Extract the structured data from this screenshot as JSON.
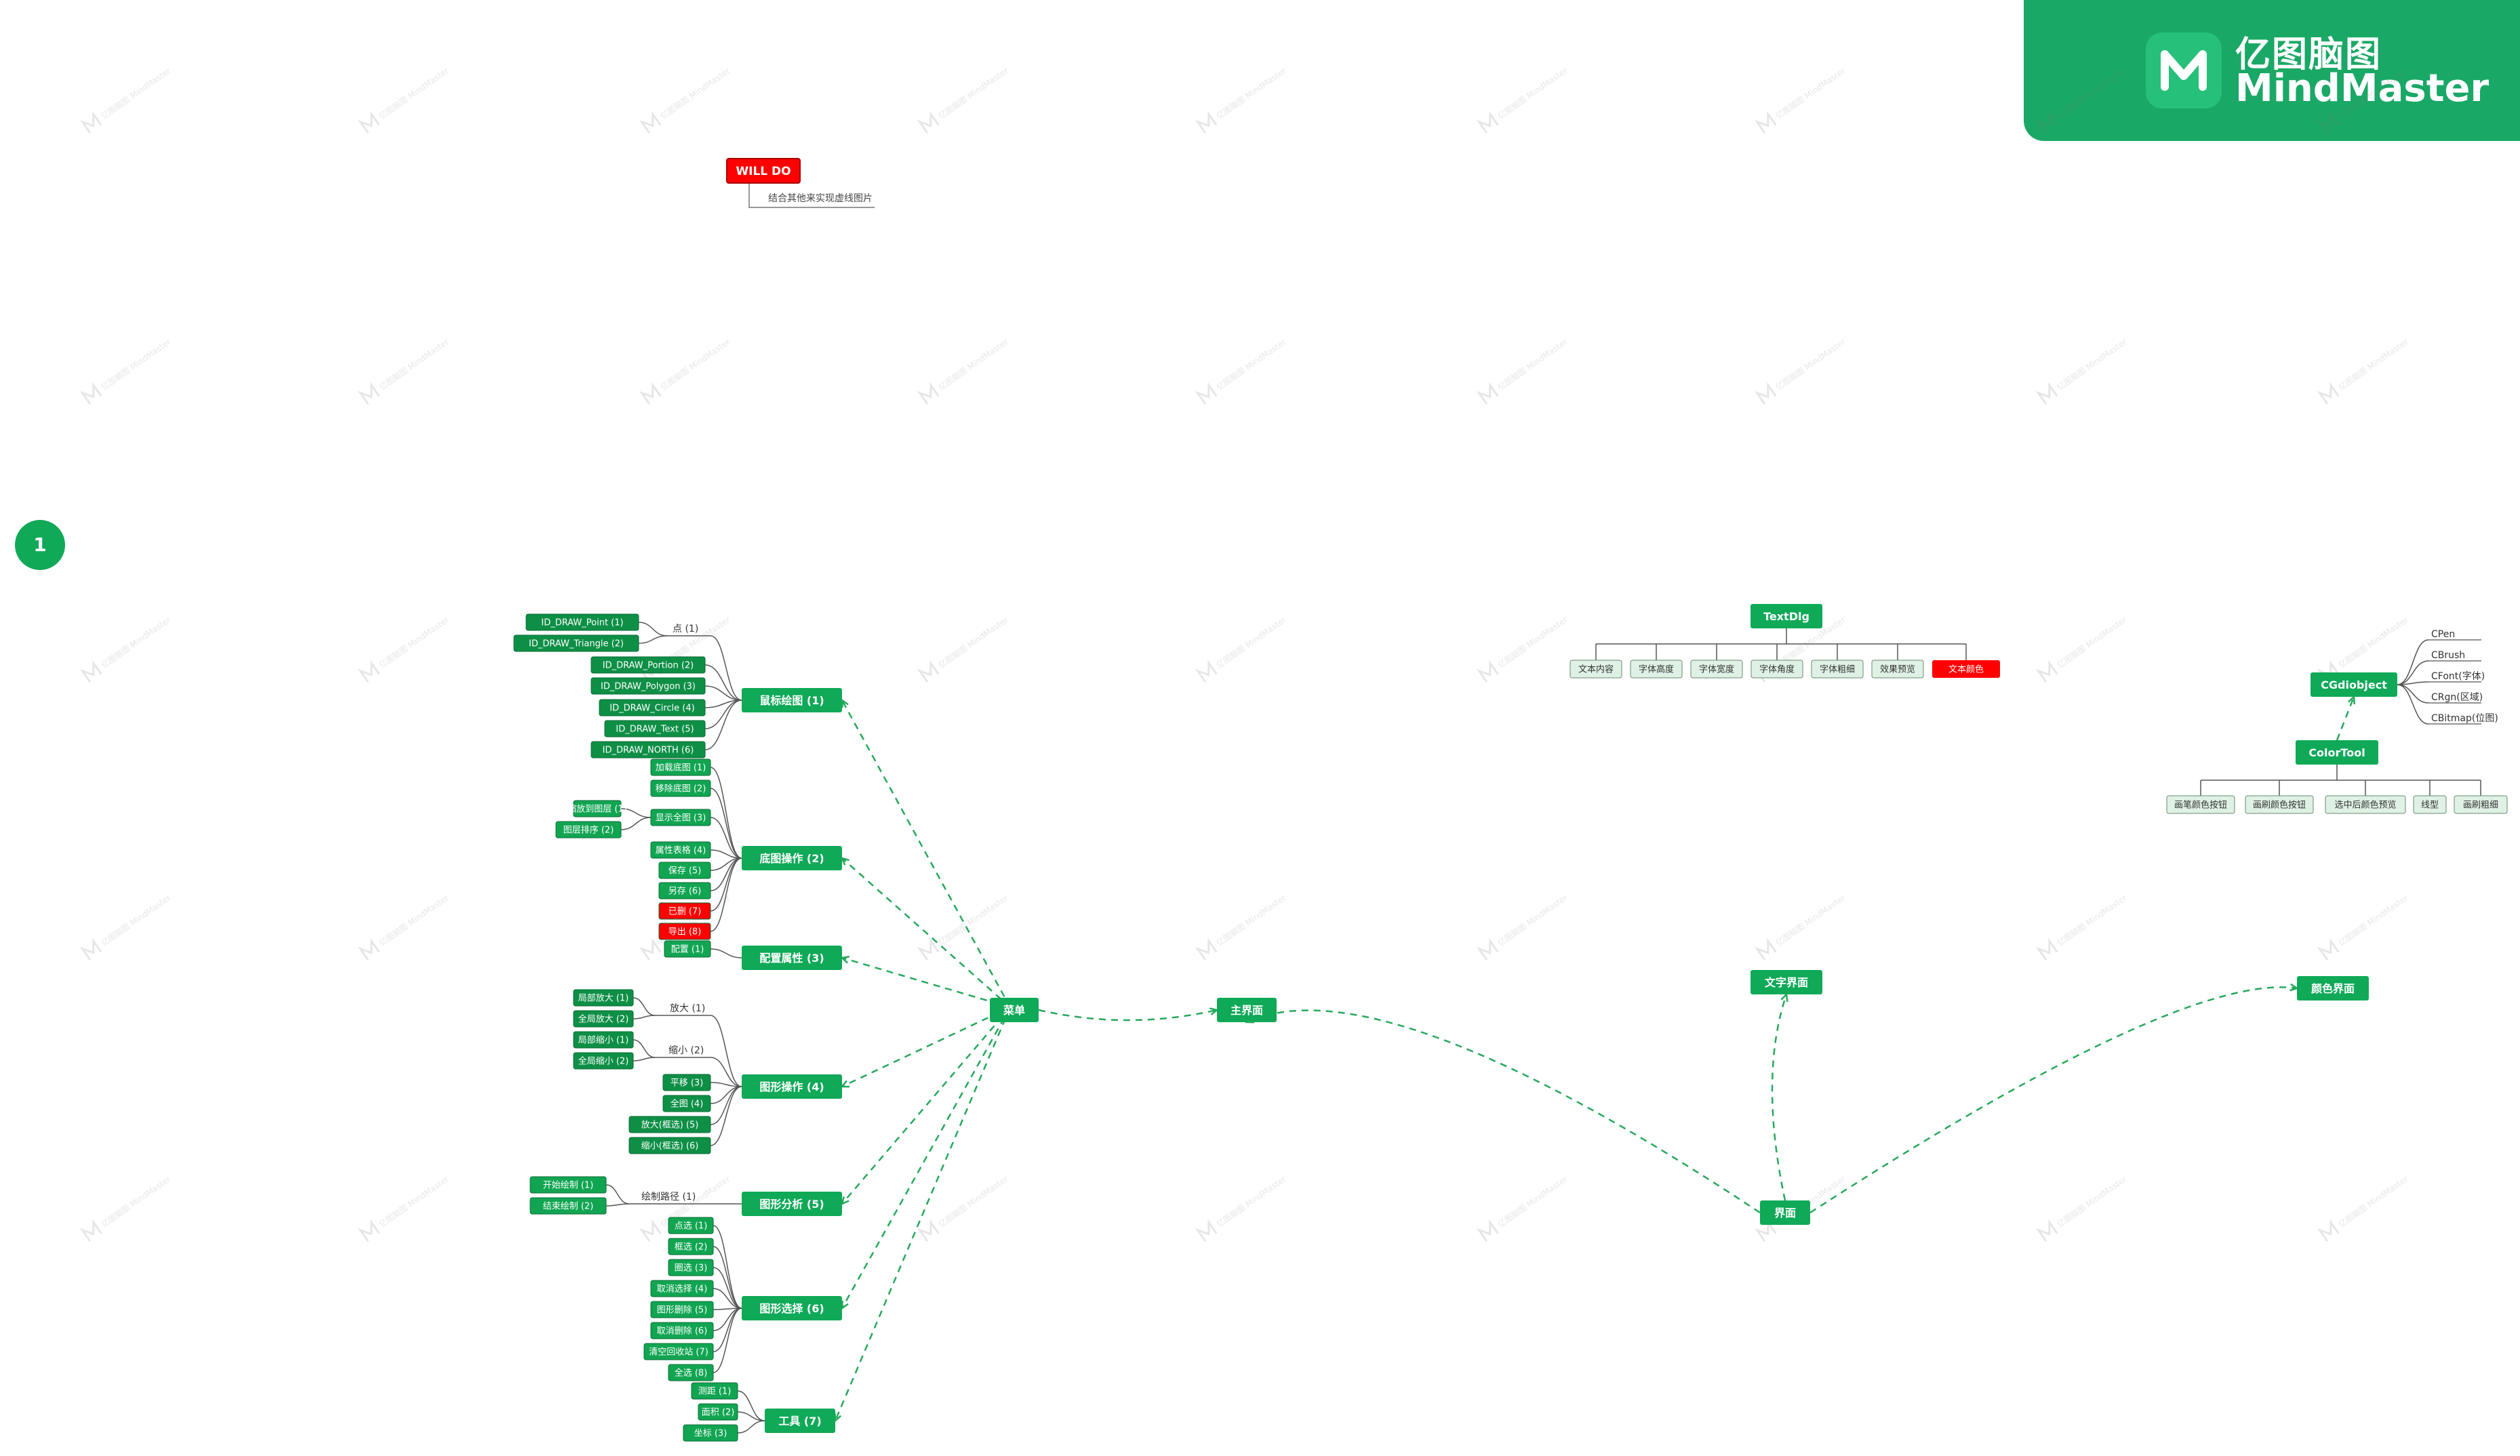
{
  "brand": {
    "name_cn": "亿图脑图",
    "name_en": "MindMaster",
    "logo_icon": "mindmaster-logo-icon"
  },
  "page_badge": "1",
  "watermark_text": "亿图脑图 MindMaster",
  "colors": {
    "topic_green": "#0fa958",
    "leaf_green": "#11a552",
    "leaf_dark_green": "#0e8f46",
    "light_leaf": "#dff1e4",
    "highlight_red": "#ff0000",
    "dashed_line": "#25a85b",
    "branch_line": "#555555"
  },
  "will_do": {
    "badge": "WILL DO",
    "note": "结合其他来实现虚线图片"
  },
  "nodes": {
    "main_ui": "主界面",
    "menu": "菜单",
    "interface": "界面",
    "text_ui": "文字界面",
    "color_ui": "颜色界面",
    "textdlg": "TextDlg",
    "cgdiobject": "CGdiobject",
    "colortool": "ColorTool"
  },
  "menu_branches": [
    {
      "label": "鼠标绘图  (1)",
      "sub": "点 (1)",
      "leaves": [
        "ID_DRAW_Point  (1)",
        "ID_DRAW_Triangle  (2)",
        "ID_DRAW_Portion  (2)",
        "ID_DRAW_Polygon  (3)",
        "ID_DRAW_Circle  (4)",
        "ID_DRAW_Text  (5)",
        "ID_DRAW_NORTH  (6)"
      ]
    },
    {
      "label": "底图操作  (2)",
      "sub": "",
      "leaves": [
        "加载底图 (1)",
        "移除底图 (2)",
        "显示全图 (3)",
        "缩放到图层 (1)",
        "图层排序 (2)",
        "属性表格 (4)",
        "保存 (5)",
        "另存 (6)",
        "已删 (7)",
        "导出 (8)"
      ]
    },
    {
      "label": "配置属性  (3)",
      "sub": "",
      "leaves": [
        "配置 (1)"
      ]
    },
    {
      "label": "图形操作  (4)",
      "sub": "放大 (1)",
      "sub2": "缩小 (2)",
      "leaves": [
        "局部放大 (1)",
        "全局放大 (2)",
        "局部缩小 (1)",
        "全局缩小 (2)",
        "平移 (3)",
        "全图 (4)",
        "放大(框选)  (5)",
        "缩小(框选)  (6)"
      ]
    },
    {
      "label": "图形分析  (5)",
      "sub": "绘制路径  (1)",
      "leaves": [
        "开始绘制  (1)",
        "结束绘制  (2)"
      ]
    },
    {
      "label": "图形选择  (6)",
      "sub": "",
      "leaves": [
        "点选 (1)",
        "框选 (2)",
        "圈选 (3)",
        "取消选择 (4)",
        "图形删除 (5)",
        "取消删除 (6)",
        "清空回收站 (7)",
        "全选 (8)"
      ]
    },
    {
      "label": "工具  (7)",
      "sub": "",
      "leaves": [
        "测距 (1)",
        "面积 (2)",
        "坐标  (3)"
      ]
    }
  ],
  "textdlg_children": [
    "文本内容",
    "字体高度",
    "字体宽度",
    "字体角度",
    "字体粗细",
    "效果预览",
    "文本颜色"
  ],
  "cgdi_children": [
    "CPen",
    "CBrush",
    "CFont(字体)",
    "CRgn(区域)",
    "CBitmap(位图)"
  ],
  "colortool_children": [
    "画笔颜色按钮",
    "画刷颜色按钮",
    "选中后颜色预览",
    "线型",
    "画刷粗细"
  ]
}
